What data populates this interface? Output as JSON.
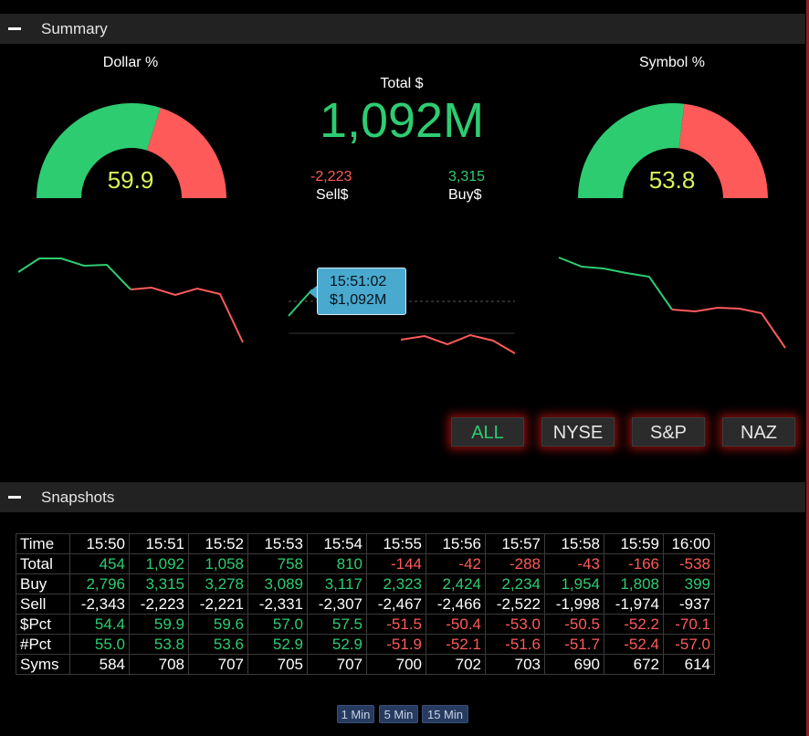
{
  "summary": {
    "title": "Summary",
    "dollar_gauge": {
      "title": "Dollar %",
      "value": 59.9,
      "label": "59.9"
    },
    "symbol_gauge": {
      "title": "Symbol %",
      "value": 53.8,
      "label": "53.8"
    },
    "total": {
      "label": "Total $",
      "value": "1,092M"
    },
    "sell": {
      "value": "-2,223",
      "label": "Sell$"
    },
    "buy": {
      "value": "3,315",
      "label": "Buy$"
    },
    "tooltip": {
      "time": "15:51:02",
      "value": "$1,092M"
    },
    "filters": [
      {
        "label": "ALL",
        "active": true
      },
      {
        "label": "NYSE",
        "active": false
      },
      {
        "label": "S&P",
        "active": false
      },
      {
        "label": "NAZ",
        "active": false
      }
    ],
    "colors": {
      "up": "#2ecc71",
      "down": "#ff5a5a",
      "gauge_value": "#d9f25a",
      "tooltip": "#4aa9cf"
    }
  },
  "snapshots": {
    "title": "Snapshots",
    "header_label": "Time",
    "times": [
      "15:50",
      "15:51",
      "15:52",
      "15:53",
      "15:54",
      "15:55",
      "15:56",
      "15:57",
      "15:58",
      "15:59",
      "16:00"
    ],
    "rows": [
      {
        "label": "Total",
        "values": [
          "454",
          "1,092",
          "1,058",
          "758",
          "810",
          "-144",
          "-42",
          "-288",
          "-43",
          "-166",
          "-538"
        ]
      },
      {
        "label": "Buy",
        "values": [
          "2,796",
          "3,315",
          "3,278",
          "3,089",
          "3,117",
          "2,323",
          "2,424",
          "2,234",
          "1,954",
          "1,808",
          "399"
        ]
      },
      {
        "label": "Sell",
        "values": [
          "-2,343",
          "-2,223",
          "-2,221",
          "-2,331",
          "-2,307",
          "-2,467",
          "-2,466",
          "-2,522",
          "-1,998",
          "-1,974",
          "-937"
        ]
      },
      {
        "label": "$Pct",
        "values": [
          "54.4",
          "59.9",
          "59.6",
          "57.0",
          "57.5",
          "-51.5",
          "-50.4",
          "-53.0",
          "-50.5",
          "-52.2",
          "-70.1"
        ]
      },
      {
        "label": "#Pct",
        "values": [
          "55.0",
          "53.8",
          "53.6",
          "52.9",
          "52.9",
          "-51.9",
          "-52.1",
          "-51.6",
          "-51.7",
          "-52.4",
          "-57.0"
        ]
      },
      {
        "label": "Syms",
        "values": [
          "584",
          "708",
          "707",
          "705",
          "707",
          "700",
          "702",
          "703",
          "690",
          "672",
          "614"
        ]
      }
    ],
    "intervals": [
      "1 Min",
      "5 Min",
      "15 Min"
    ]
  }
}
